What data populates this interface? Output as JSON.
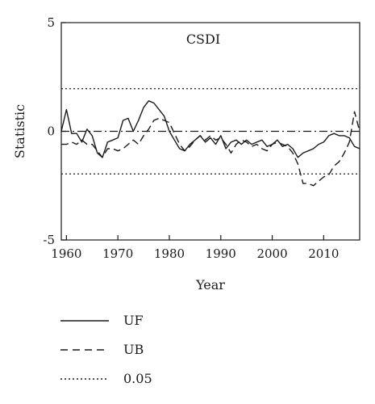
{
  "chart_data": {
    "type": "line",
    "title": "CSDI",
    "xlabel": "Year",
    "ylabel": "Statistic",
    "xlim": [
      1959,
      2017
    ],
    "ylim": [
      -5,
      5
    ],
    "x_ticks": [
      "1960",
      "1970",
      "1980",
      "1990",
      "2000",
      "2010"
    ],
    "y_ticks": [
      "5",
      "0",
      "-5"
    ],
    "grid": false,
    "legend_position": "below",
    "series": [
      {
        "name": "UF",
        "style": "solid",
        "color": "#1a1a1a",
        "x": [
          1959,
          1960,
          1961,
          1962,
          1963,
          1964,
          1965,
          1966,
          1967,
          1968,
          1969,
          1970,
          1971,
          1972,
          1973,
          1974,
          1975,
          1976,
          1977,
          1978,
          1979,
          1980,
          1981,
          1982,
          1983,
          1984,
          1985,
          1986,
          1987,
          1988,
          1989,
          1990,
          1991,
          1992,
          1993,
          1994,
          1995,
          1996,
          1997,
          1998,
          1999,
          2000,
          2001,
          2002,
          2003,
          2004,
          2005,
          2006,
          2007,
          2008,
          2009,
          2010,
          2011,
          2012,
          2013,
          2014,
          2015,
          2016,
          2017
        ],
        "values": [
          0.0,
          1.0,
          -0.1,
          -0.1,
          -0.5,
          0.1,
          -0.2,
          -1.0,
          -1.2,
          -0.5,
          -0.4,
          -0.3,
          0.5,
          0.6,
          0.0,
          0.5,
          1.1,
          1.4,
          1.3,
          1.0,
          0.7,
          0.0,
          -0.4,
          -0.8,
          -0.9,
          -0.6,
          -0.4,
          -0.2,
          -0.5,
          -0.3,
          -0.6,
          -0.2,
          -0.8,
          -0.5,
          -0.4,
          -0.6,
          -0.4,
          -0.6,
          -0.5,
          -0.4,
          -0.7,
          -0.6,
          -0.4,
          -0.7,
          -0.6,
          -0.8,
          -1.2,
          -1.0,
          -0.9,
          -0.8,
          -0.6,
          -0.5,
          -0.2,
          -0.1,
          -0.2,
          -0.2,
          -0.3,
          -0.7,
          -0.8
        ]
      },
      {
        "name": "UB",
        "style": "dashed",
        "color": "#1a1a1a",
        "x": [
          1959,
          1960,
          1961,
          1962,
          1963,
          1964,
          1965,
          1966,
          1967,
          1968,
          1969,
          1970,
          1971,
          1972,
          1973,
          1974,
          1975,
          1976,
          1977,
          1978,
          1979,
          1980,
          1981,
          1982,
          1983,
          1984,
          1985,
          1986,
          1987,
          1988,
          1989,
          1990,
          1991,
          1992,
          1993,
          1994,
          1995,
          1996,
          1997,
          1998,
          1999,
          2000,
          2001,
          2002,
          2003,
          2004,
          2005,
          2006,
          2007,
          2008,
          2009,
          2010,
          2011,
          2012,
          2013,
          2014,
          2015,
          2016,
          2017
        ],
        "values": [
          -0.6,
          -0.6,
          -0.5,
          -0.6,
          -0.4,
          -0.6,
          -0.6,
          -0.9,
          -1.2,
          -0.8,
          -0.8,
          -0.9,
          -0.8,
          -0.6,
          -0.4,
          -0.6,
          -0.2,
          0.1,
          0.5,
          0.6,
          0.5,
          0.4,
          -0.1,
          -0.6,
          -0.9,
          -0.7,
          -0.4,
          -0.2,
          -0.4,
          -0.2,
          -0.4,
          -0.3,
          -0.6,
          -1.0,
          -0.6,
          -0.4,
          -0.5,
          -0.7,
          -0.6,
          -0.8,
          -0.9,
          -0.6,
          -0.5,
          -0.6,
          -0.7,
          -1.0,
          -1.5,
          -2.4,
          -2.4,
          -2.5,
          -2.3,
          -2.1,
          -2.0,
          -1.6,
          -1.4,
          -1.0,
          -0.5,
          0.9,
          0.0
        ]
      },
      {
        "name": "0.05",
        "style": "dotted",
        "color": "#1a1a1a",
        "x": [
          1959,
          2017
        ],
        "values": [
          1.96,
          1.96
        ],
        "mirror_values": [
          -1.96,
          -1.96
        ]
      }
    ],
    "zero_line": {
      "style": "dash-dot",
      "value": 0
    }
  },
  "legend": {
    "items": [
      {
        "label": "UF",
        "style": "solid"
      },
      {
        "label": "UB",
        "style": "dashed"
      },
      {
        "label": "0.05",
        "style": "dotted"
      }
    ]
  }
}
